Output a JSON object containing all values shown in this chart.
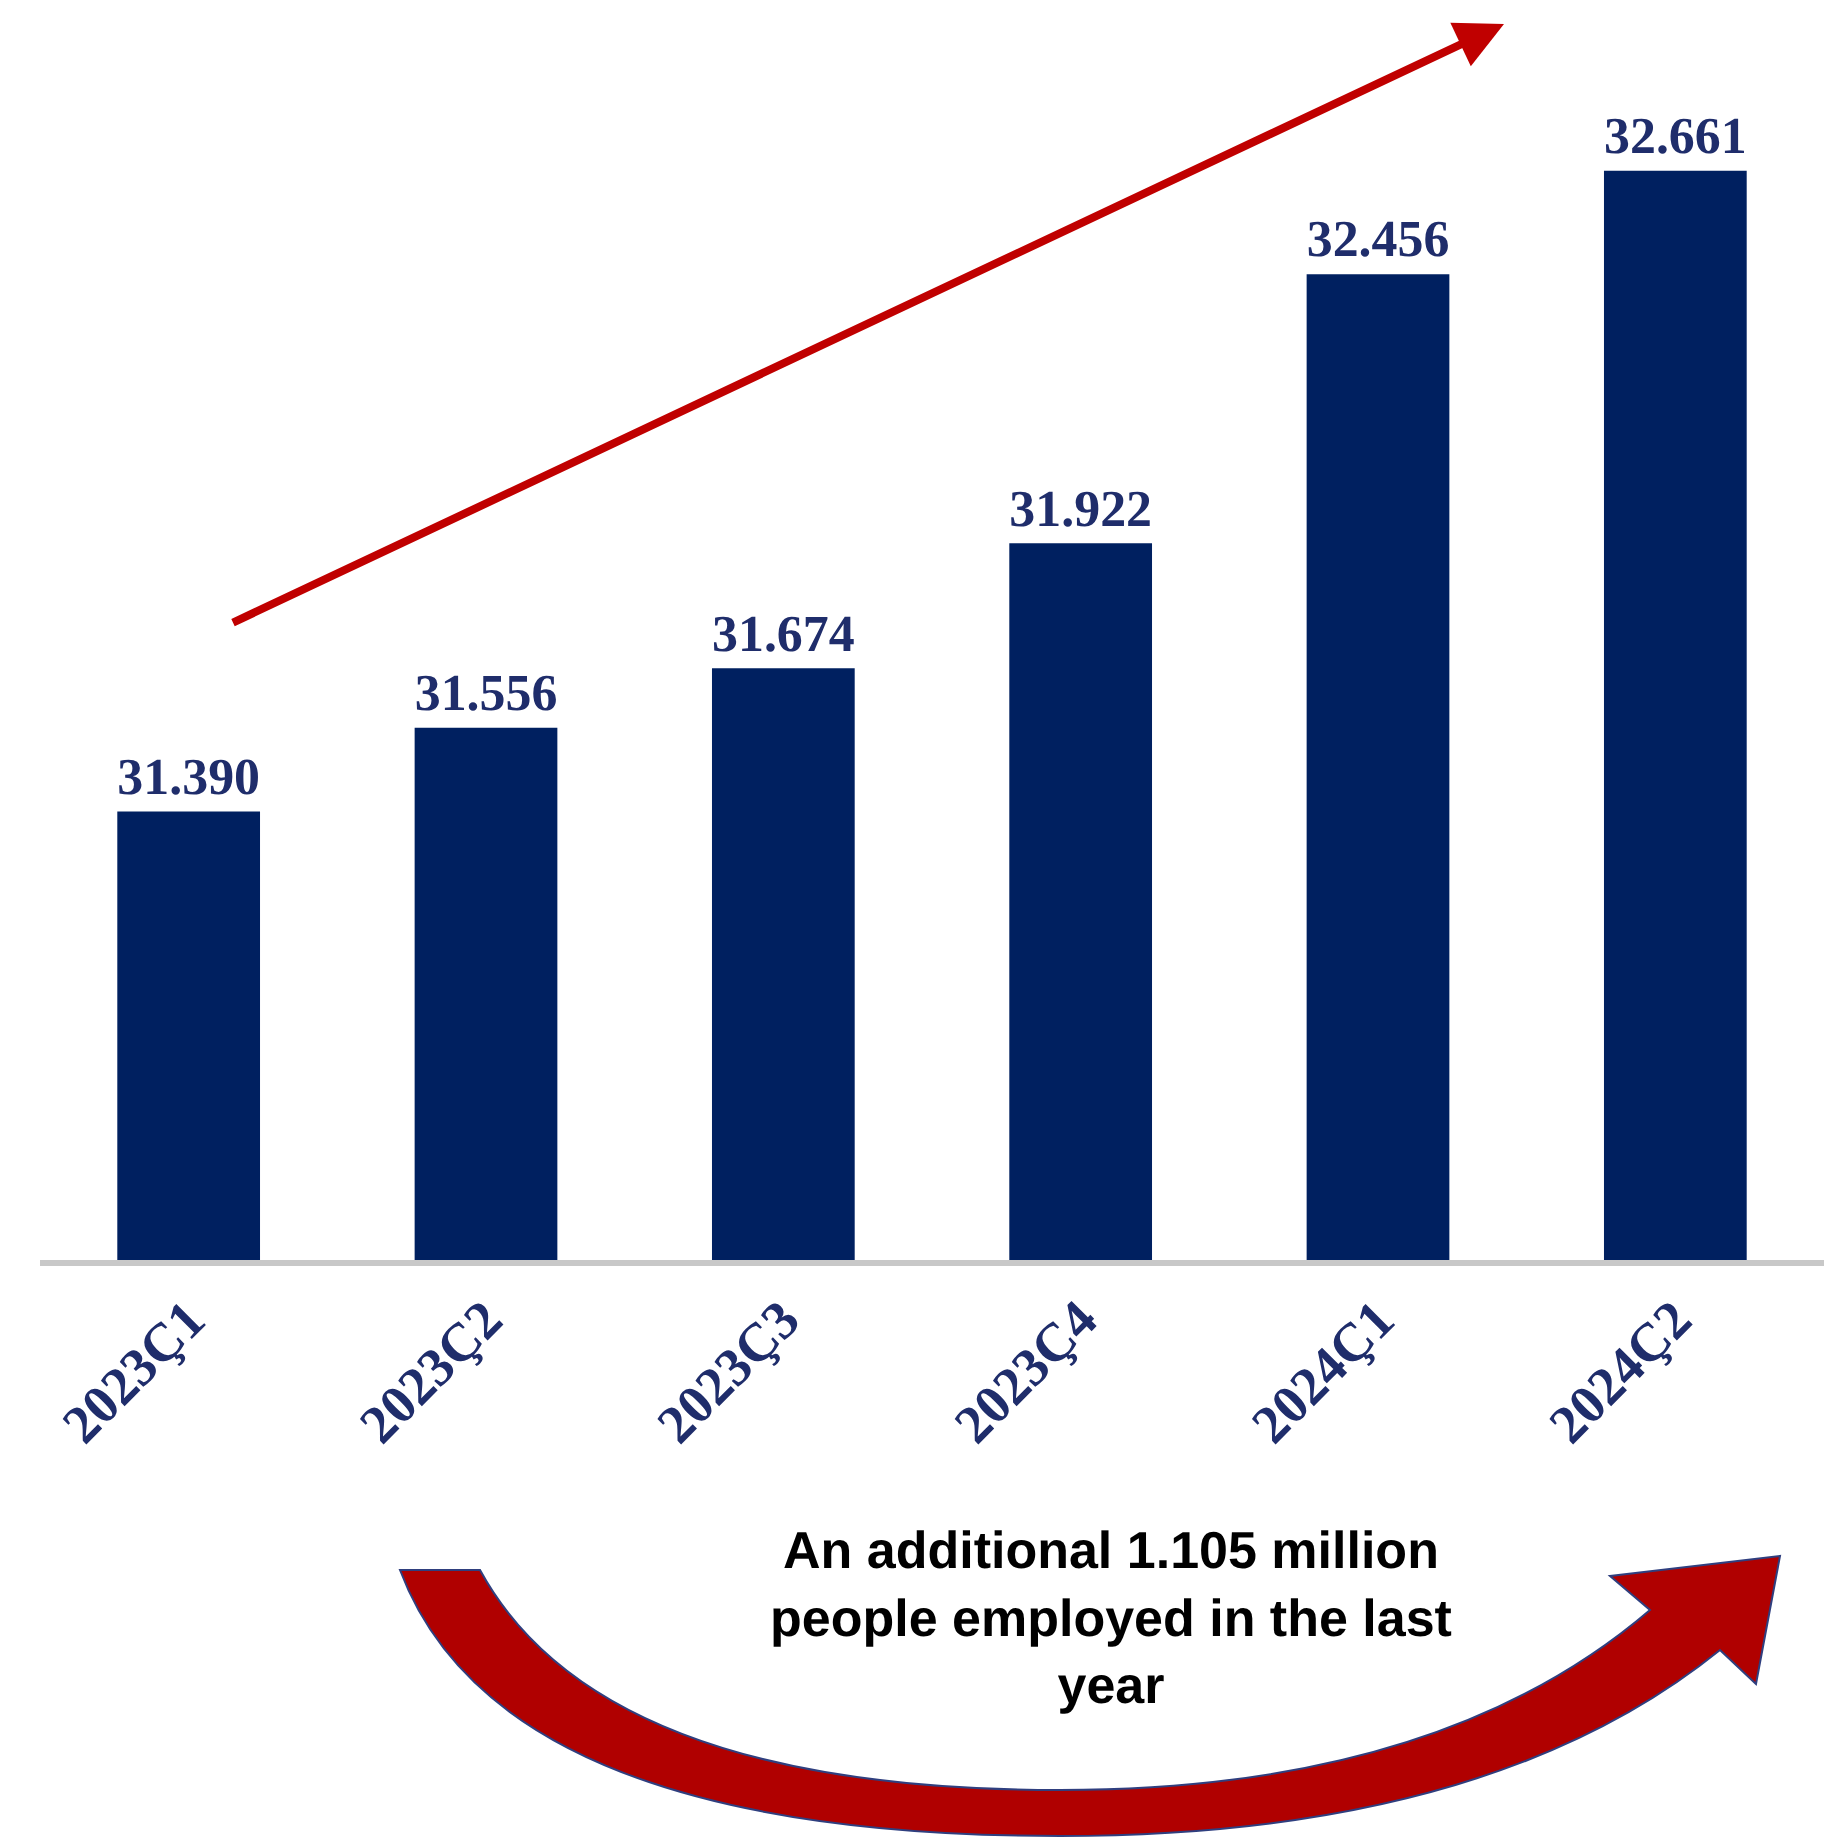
{
  "chart_data": {
    "type": "bar",
    "categories": [
      "2023Ç1",
      "2023Ç2",
      "2023Ç3",
      "2023Ç4",
      "2024Ç1",
      "2024Ç2"
    ],
    "values": [
      31.39,
      31.556,
      31.674,
      31.922,
      32.456,
      32.661
    ],
    "value_labels": [
      "31.390",
      "31.556",
      "31.674",
      "31.922",
      "32.456",
      "32.661"
    ],
    "color": "#002060",
    "ylim": [
      30.5,
      33.0
    ],
    "tick_labels": "x",
    "annotations": [
      "An additional 1.105 million people employed in the last year"
    ]
  }
}
